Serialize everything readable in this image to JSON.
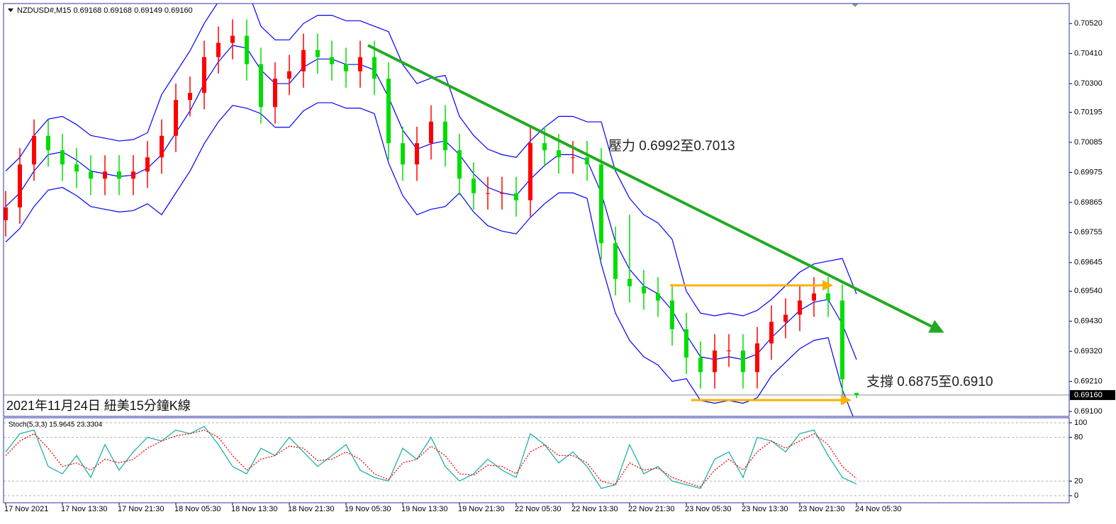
{
  "chart_data": [
    {
      "type": "candlestick",
      "title": "NZDUSD#,M15  0.69168 0.69168 0.69149 0.69160",
      "caption": "2021年11月24日 紐美15分鐘K線",
      "annotations": [
        "壓力 0.6992至0.7013",
        "支撐 0.6875至0.6910"
      ],
      "up_color": "#ff0000",
      "down_color": "#00dd00",
      "band_color": "#0000ff",
      "open": [
        0.698,
        0.69847,
        0.70004,
        0.70109,
        0.70056,
        0.70004,
        0.69978,
        0.69952,
        0.69978,
        0.69952,
        0.69978,
        0.7003,
        0.70109,
        0.7024,
        0.70266,
        0.70397,
        0.70449,
        0.70475,
        0.70371,
        0.70214,
        0.70318,
        0.70345,
        0.70423,
        0.70397,
        0.70371,
        0.70345,
        0.70397,
        0.70318,
        0.70082,
        0.70004,
        0.70082,
        0.70161,
        0.70056,
        0.69952,
        0.69899,
        0.69899,
        0.69899,
        0.69873,
        0.70082,
        0.70056,
        0.7003,
        0.7003,
        0.70004,
        0.69716,
        0.69585,
        0.69558,
        0.69532,
        0.69506,
        0.69401,
        0.69297,
        0.69244,
        0.69323,
        0.69323,
        0.69244,
        0.69349,
        0.69428,
        0.69454,
        0.69506,
        0.69532,
        0.69506,
        0.69168
      ],
      "high": [
        0.69907,
        0.70064,
        0.70169,
        0.70169,
        0.70116,
        0.70064,
        0.70038,
        0.70038,
        0.70038,
        0.70038,
        0.7009,
        0.70169,
        0.703,
        0.70326,
        0.70457,
        0.70509,
        0.70535,
        0.70535,
        0.70431,
        0.70378,
        0.70405,
        0.70483,
        0.70483,
        0.70457,
        0.70431,
        0.70457,
        0.70457,
        0.70378,
        0.70142,
        0.70142,
        0.70221,
        0.70221,
        0.70116,
        0.70012,
        0.69959,
        0.69959,
        0.69959,
        0.70142,
        0.70142,
        0.70116,
        0.7009,
        0.7009,
        0.70064,
        0.69776,
        0.6982,
        0.69618,
        0.69592,
        0.69566,
        0.69461,
        0.69357,
        0.69383,
        0.69383,
        0.69383,
        0.69409,
        0.69488,
        0.69514,
        0.69566,
        0.69592,
        0.69592,
        0.69566,
        0.69168
      ],
      "low": [
        0.6974,
        0.69787,
        0.69944,
        0.69996,
        0.69944,
        0.69918,
        0.69892,
        0.69892,
        0.69892,
        0.69892,
        0.69918,
        0.6997,
        0.70049,
        0.7018,
        0.70206,
        0.70337,
        0.70389,
        0.70311,
        0.70154,
        0.70154,
        0.70258,
        0.70285,
        0.70337,
        0.70311,
        0.70285,
        0.70285,
        0.70258,
        0.70022,
        0.69944,
        0.69944,
        0.70022,
        0.69996,
        0.69892,
        0.69839,
        0.69839,
        0.69839,
        0.69813,
        0.69813,
        0.69996,
        0.6997,
        0.6997,
        0.69944,
        0.69656,
        0.69525,
        0.69498,
        0.69472,
        0.69446,
        0.69341,
        0.69237,
        0.69184,
        0.69184,
        0.69263,
        0.69184,
        0.69184,
        0.69289,
        0.69368,
        0.69394,
        0.69446,
        0.69446,
        0.69158,
        0.69149
      ],
      "close": [
        0.69847,
        0.70004,
        0.70109,
        0.70056,
        0.70004,
        0.69978,
        0.69952,
        0.69978,
        0.69952,
        0.69978,
        0.7003,
        0.70109,
        0.7024,
        0.70266,
        0.70397,
        0.70449,
        0.70475,
        0.70371,
        0.70214,
        0.70318,
        0.70345,
        0.70423,
        0.70397,
        0.70371,
        0.70345,
        0.70397,
        0.70318,
        0.70082,
        0.70004,
        0.70082,
        0.70161,
        0.70056,
        0.69952,
        0.69899,
        0.69899,
        0.69899,
        0.69873,
        0.70082,
        0.70056,
        0.7003,
        0.7003,
        0.70004,
        0.69716,
        0.69585,
        0.69558,
        0.69532,
        0.69506,
        0.69401,
        0.69297,
        0.69244,
        0.69323,
        0.69323,
        0.69244,
        0.69349,
        0.69428,
        0.69454,
        0.69506,
        0.69532,
        0.69506,
        0.69218,
        0.6916
      ],
      "bands": [
        {
          "values": [
            0.6998,
            0.7003,
            0.7011,
            0.7017,
            0.7018,
            0.7015,
            0.7011,
            0.701,
            0.7009,
            0.70095,
            0.7012,
            0.7026,
            0.7034,
            0.7042,
            0.7052,
            0.706,
            0.7066,
            0.7065,
            0.7051,
            0.7046,
            0.7046,
            0.7052,
            0.7055,
            0.7055,
            0.7053,
            0.7053,
            0.7051,
            0.7049,
            0.7037,
            0.703,
            0.7032,
            0.7033,
            0.7018,
            0.7011,
            0.7006,
            0.7004,
            0.7003,
            0.7009,
            0.7014,
            0.7018,
            0.7018,
            0.7016,
            0.7016,
            0.6998,
            0.6988,
            0.6982,
            0.6979,
            0.6973,
            0.6954,
            0.6946,
            0.6945,
            0.6946,
            0.6945,
            0.6947,
            0.6951,
            0.6956,
            0.6961,
            0.6964,
            0.6965,
            0.6966,
            0.6953
          ]
        },
        {
          "values": [
            0.6985,
            0.699,
            0.6998,
            0.7004,
            0.7005,
            0.7002,
            0.6998,
            0.6997,
            0.6996,
            0.69965,
            0.6999,
            0.7004,
            0.7012,
            0.702,
            0.703,
            0.7038,
            0.7044,
            0.7043,
            0.7035,
            0.703,
            0.703,
            0.7036,
            0.7039,
            0.7039,
            0.7037,
            0.7037,
            0.7035,
            0.7025,
            0.7013,
            0.7006,
            0.7008,
            0.7009,
            0.7004,
            0.6997,
            0.6992,
            0.699,
            0.6989,
            0.6995,
            0.7,
            0.7004,
            0.7004,
            0.7002,
            0.699,
            0.6972,
            0.6962,
            0.6956,
            0.6953,
            0.6947,
            0.6938,
            0.693,
            0.6929,
            0.693,
            0.6929,
            0.6931,
            0.6937,
            0.6942,
            0.6947,
            0.695,
            0.6951,
            0.6942,
            0.6929
          ]
        },
        {
          "values": [
            0.6972,
            0.6977,
            0.6985,
            0.6991,
            0.6992,
            0.6989,
            0.6985,
            0.6984,
            0.6983,
            0.69835,
            0.6986,
            0.6982,
            0.699,
            0.6998,
            0.7008,
            0.7016,
            0.7022,
            0.7021,
            0.7019,
            0.7014,
            0.7014,
            0.702,
            0.7023,
            0.7023,
            0.7021,
            0.7021,
            0.7019,
            0.7001,
            0.6989,
            0.6982,
            0.6984,
            0.6985,
            0.699,
            0.6983,
            0.6978,
            0.6976,
            0.6975,
            0.6981,
            0.6986,
            0.699,
            0.699,
            0.6988,
            0.6964,
            0.6946,
            0.6936,
            0.693,
            0.6927,
            0.6921,
            0.6922,
            0.6914,
            0.6913,
            0.6914,
            0.6913,
            0.6915,
            0.6923,
            0.6928,
            0.6933,
            0.6936,
            0.6937,
            0.6918,
            0.6905
          ]
        }
      ],
      "ylim": [
        0.69082,
        0.70593
      ],
      "yticks": [
        {
          "value": 0.7052,
          "label": "0.70520"
        },
        {
          "value": 0.7041,
          "label": "0.70410"
        },
        {
          "value": 0.703,
          "label": "0.70300"
        },
        {
          "value": 0.70195,
          "label": "0.70195"
        },
        {
          "value": 0.70085,
          "label": "0.70085"
        },
        {
          "value": 0.69975,
          "label": "0.69975"
        },
        {
          "value": 0.69865,
          "label": "0.69865"
        },
        {
          "value": 0.69755,
          "label": "0.69755"
        },
        {
          "value": 0.69645,
          "label": "0.69645"
        },
        {
          "value": 0.6954,
          "label": "0.69540"
        },
        {
          "value": 0.6943,
          "label": "0.69430"
        },
        {
          "value": 0.6932,
          "label": "0.69320"
        },
        {
          "value": 0.6921,
          "label": "0.69210"
        },
        {
          "value": 0.691,
          "label": "0.69100"
        }
      ],
      "price_line": {
        "value": 0.6916,
        "label": "0.69160"
      }
    },
    {
      "type": "line",
      "title": "Stoch(5,3,3) 15.9645 23.3304",
      "categories": [
        "17 Nov 2021",
        null,
        null,
        null,
        "17 Nov 13:30",
        null,
        null,
        null,
        "17 Nov 21:30",
        null,
        null,
        null,
        "18 Nov 05:30",
        null,
        null,
        null,
        "18 Nov 13:30",
        null,
        null,
        null,
        "18 Nov 21:30",
        null,
        null,
        null,
        "19 Nov 05:30",
        null,
        null,
        null,
        "19 Nov 13:30",
        null,
        null,
        null,
        "19 Nov 21:30",
        null,
        null,
        null,
        "22 Nov 05:30",
        null,
        null,
        null,
        "22 Nov 13:30",
        null,
        null,
        null,
        "22 Nov 21:30",
        null,
        null,
        null,
        "23 Nov 05:30",
        null,
        null,
        null,
        "23 Nov 13:30",
        null,
        null,
        null,
        "23 Nov 21:30",
        null,
        null,
        null,
        "24 Nov 05:30"
      ],
      "series": [
        {
          "color": "#20b2aa",
          "dashed": false,
          "values": [
            60,
            85,
            90,
            40,
            30,
            55,
            25,
            70,
            35,
            60,
            80,
            75,
            90,
            85,
            95,
            70,
            40,
            30,
            65,
            55,
            80,
            60,
            40,
            55,
            70,
            35,
            25,
            20,
            65,
            50,
            80,
            40,
            20,
            30,
            50,
            35,
            25,
            85,
            70,
            45,
            60,
            40,
            10,
            15,
            70,
            30,
            40,
            20,
            15,
            10,
            50,
            60,
            25,
            80,
            75,
            60,
            85,
            90,
            55,
            25,
            15.9645
          ]
        },
        {
          "color": "#ff0000",
          "dashed": true,
          "values": [
            55,
            75,
            85,
            65,
            40,
            45,
            35,
            50,
            45,
            50,
            65,
            75,
            82,
            85,
            90,
            80,
            55,
            35,
            50,
            55,
            68,
            65,
            48,
            50,
            60,
            50,
            30,
            22,
            45,
            50,
            68,
            55,
            30,
            28,
            42,
            40,
            30,
            60,
            70,
            55,
            55,
            45,
            20,
            15,
            45,
            35,
            38,
            25,
            18,
            12,
            35,
            50,
            35,
            60,
            75,
            65,
            75,
            85,
            70,
            40,
            23.3304
          ]
        }
      ],
      "ylim": [
        -9.7,
        106.8
      ],
      "yticks": [
        0,
        20,
        80,
        100
      ],
      "grid": true
    }
  ]
}
